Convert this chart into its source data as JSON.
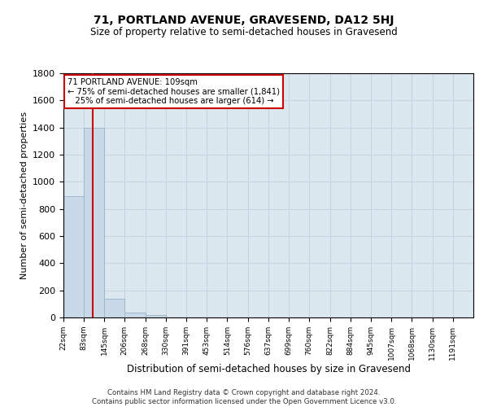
{
  "title": "71, PORTLAND AVENUE, GRAVESEND, DA12 5HJ",
  "subtitle": "Size of property relative to semi-detached houses in Gravesend",
  "xlabel": "Distribution of semi-detached houses by size in Gravesend",
  "ylabel": "Number of semi-detached properties",
  "bar_edges": [
    22,
    83,
    145,
    206,
    268,
    330,
    391,
    453,
    514,
    576,
    637,
    699,
    760,
    822,
    884,
    945,
    1007,
    1068,
    1130,
    1191,
    1253
  ],
  "bar_heights": [
    893,
    1400,
    140,
    35,
    20,
    0,
    0,
    0,
    0,
    0,
    0,
    0,
    0,
    0,
    0,
    0,
    0,
    0,
    0,
    0
  ],
  "bar_color": "#c9d9e8",
  "bar_edge_color": "#a0b8cc",
  "property_sqm": 109,
  "property_line_color": "#cc0000",
  "annotation_line1": "71 PORTLAND AVENUE: 109sqm",
  "annotation_line2": "← 75% of semi-detached houses are smaller (1,841)",
  "annotation_line3": "   25% of semi-detached houses are larger (614) →",
  "annotation_box_color": "#ffffff",
  "annotation_box_edge_color": "#cc0000",
  "ylim": [
    0,
    1800
  ],
  "grid_color": "#c8d4e0",
  "background_color": "#dce8f0",
  "footer_line1": "Contains HM Land Registry data © Crown copyright and database right 2024.",
  "footer_line2": "Contains public sector information licensed under the Open Government Licence v3.0."
}
